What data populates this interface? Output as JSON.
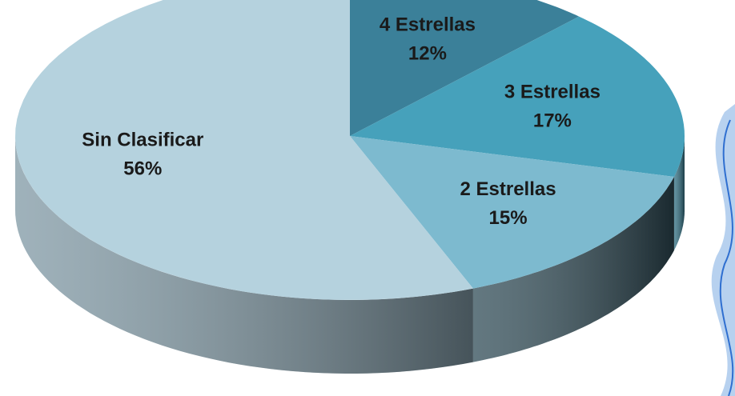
{
  "chart_data": {
    "type": "pie",
    "categories": [
      "4 Estrellas",
      "3 Estrellas",
      "2 Estrellas",
      "Sin Clasificar"
    ],
    "values": [
      12,
      17,
      15,
      56
    ],
    "value_labels": [
      "12%",
      "17%",
      "15%",
      "56%"
    ],
    "colors": [
      "#3b8099",
      "#46a1bb",
      "#7dbacf",
      "#b5d2de"
    ],
    "side_colors": [
      "#2a5d70",
      "#2f6f82",
      "#2f4b56",
      "#7f98a4"
    ]
  }
}
